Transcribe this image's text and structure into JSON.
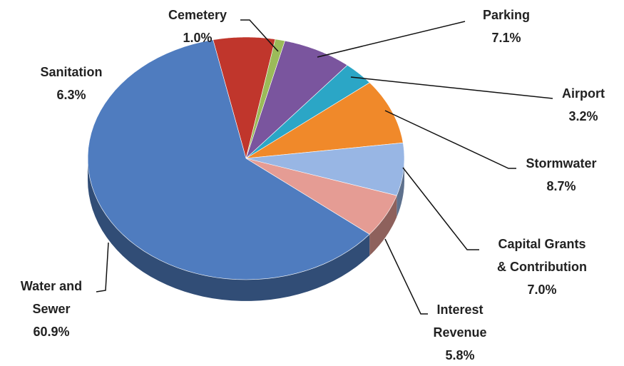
{
  "chart_data": {
    "type": "pie",
    "categories": [
      "Sanitation",
      "Cemetery",
      "Parking",
      "Airport",
      "Stormwater",
      "Capital  Grants\n& Contribution",
      "Interest\nRevenue",
      "Water and\nSewer"
    ],
    "values": [
      6.3,
      1.0,
      7.1,
      3.2,
      8.7,
      7.0,
      5.8,
      60.9
    ],
    "value_labels": [
      "6.3%",
      "1.0%",
      "7.1%",
      "3.2%",
      "8.7%",
      "7.0%",
      "5.8%",
      "60.9%"
    ],
    "colors": [
      "#c0362c",
      "#9bbb59",
      "#7a559e",
      "#2ba6c6",
      "#f0892a",
      "#98b6e4",
      "#e59c94",
      "#4f7cbf"
    ]
  }
}
